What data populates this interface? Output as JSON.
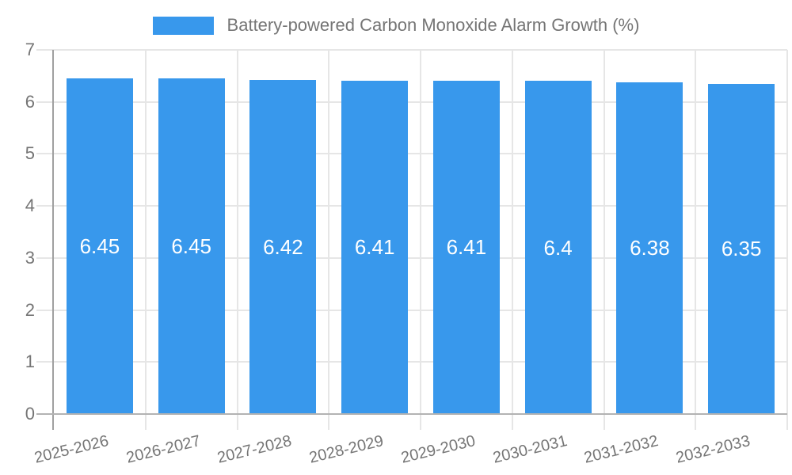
{
  "legend": {
    "label": "Battery-powered Carbon Monoxide Alarm Growth (%)"
  },
  "chart_data": {
    "type": "bar",
    "title": "Battery-powered Carbon Monoxide Alarm Growth (%)",
    "categories": [
      "2025-2026",
      "2026-2027",
      "2027-2028",
      "2028-2029",
      "2029-2030",
      "2030-2031",
      "2031-2032",
      "2032-2033"
    ],
    "values": [
      6.45,
      6.45,
      6.42,
      6.41,
      6.41,
      6.4,
      6.38,
      6.35
    ],
    "value_labels": [
      "6.45",
      "6.45",
      "6.42",
      "6.41",
      "6.41",
      "6.4",
      "6.38",
      "6.35"
    ],
    "xlabel": "",
    "ylabel": "",
    "ylim": [
      0,
      7
    ],
    "yticks": [
      0,
      1,
      2,
      3,
      4,
      5,
      6,
      7
    ],
    "grid": true,
    "legend_position": "top",
    "colors": {
      "bar": "#3898ec",
      "bar_label": "#ffffff",
      "axis_text": "#757575",
      "gridline": "#e6e6e6",
      "y_axis_line": "#a0a0a0",
      "x_axis_line": "#b3b3b3"
    }
  }
}
